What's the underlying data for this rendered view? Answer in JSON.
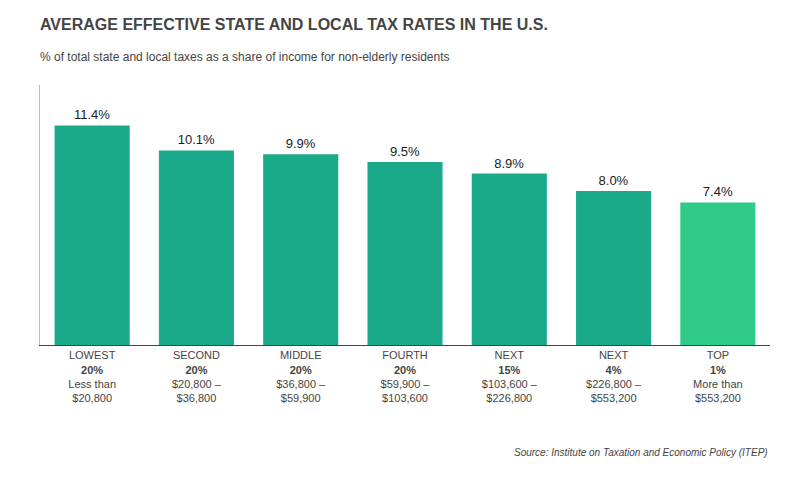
{
  "chart_data": {
    "type": "bar",
    "title": "AVERAGE EFFECTIVE STATE AND LOCAL TAX RATES IN THE U.S.",
    "subtitle": "% of total state and local taxes as a share of income for non-elderly residents",
    "source": "Source: Institute on Taxation and Economic Policy (ITEP)",
    "categories": [
      "LOWEST\n20%\nLess than\n$20,800",
      "SECOND\n20%\n$20,800 –\n$36,800",
      "MIDDLE\n20%\n$36,800 –\n$59,900",
      "FOURTH\n20%\n$59,900 –\n$103,600",
      "NEXT\n15%\n$103,600 –\n$226,800",
      "NEXT\n4%\n$226,800 –\n$553,200",
      "TOP\n1%\nMore than\n$553,200"
    ],
    "values": [
      11.4,
      10.1,
      9.9,
      9.5,
      8.9,
      8.0,
      7.4
    ],
    "value_labels": [
      "11.4%",
      "10.1%",
      "9.9%",
      "9.5%",
      "8.9%",
      "8.0%",
      "7.4%"
    ],
    "data_labels": true,
    "colors": [
      "#1aaa8a",
      "#1aaa8a",
      "#1aaa8a",
      "#1aaa8a",
      "#1aaa8a",
      "#1aaa8a",
      "#2ecc88"
    ],
    "ylim": [
      0,
      13.5
    ],
    "grid": false,
    "tick_labels": "x"
  }
}
